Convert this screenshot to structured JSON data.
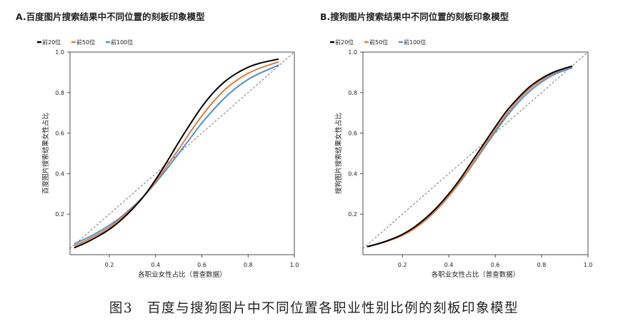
{
  "figure": {
    "caption": "图3　百度与搜狗图片中不同位置各职业性别比例的刻板印象模型"
  },
  "chart_data": [
    {
      "type": "line",
      "title": "A.百度图片搜索结果中不同位置的刻板印象模型",
      "xlabel": "各职业女性占比（普查数据）",
      "ylabel": "百度图片搜索结果女性占比",
      "xlim": [
        0.03,
        1.0
      ],
      "ylim": [
        0.0,
        1.0
      ],
      "xticks": [
        "0.2",
        "0.4",
        "0.6",
        "0.8",
        "1.0"
      ],
      "yticks": [
        "0.2",
        "0.4",
        "0.6",
        "0.8",
        "1.0"
      ],
      "x": [
        0.05,
        0.1,
        0.15,
        0.2,
        0.25,
        0.3,
        0.35,
        0.4,
        0.45,
        0.5,
        0.55,
        0.6,
        0.65,
        0.7,
        0.75,
        0.8,
        0.85,
        0.9,
        0.93
      ],
      "reference_line": {
        "label": "y = x",
        "style": "dashed",
        "from": [
          0.03,
          0.03
        ],
        "to": [
          1.0,
          1.0
        ]
      },
      "legend_position": "top-left",
      "series": [
        {
          "name": "前20位",
          "color": "#000000",
          "values": [
            0.035,
            0.06,
            0.09,
            0.125,
            0.17,
            0.225,
            0.29,
            0.37,
            0.46,
            0.555,
            0.645,
            0.73,
            0.8,
            0.855,
            0.895,
            0.925,
            0.945,
            0.958,
            0.965
          ]
        },
        {
          "name": "前50位",
          "color": "#E07B39",
          "values": [
            0.045,
            0.07,
            0.1,
            0.135,
            0.18,
            0.23,
            0.29,
            0.36,
            0.44,
            0.52,
            0.605,
            0.685,
            0.755,
            0.815,
            0.86,
            0.895,
            0.92,
            0.94,
            0.95
          ]
        },
        {
          "name": "前100位",
          "color": "#4A90D9",
          "values": [
            0.055,
            0.08,
            0.11,
            0.145,
            0.185,
            0.235,
            0.29,
            0.355,
            0.425,
            0.5,
            0.575,
            0.65,
            0.715,
            0.775,
            0.825,
            0.865,
            0.895,
            0.92,
            0.935
          ]
        }
      ]
    },
    {
      "type": "line",
      "title": "B.搜狗图片搜索结果中不同位置的刻板印象模型",
      "xlabel": "各职业女性占比（普查数据）",
      "ylabel": "搜狗图片搜索结果女性占比",
      "xlim": [
        0.03,
        1.0
      ],
      "ylim": [
        0.0,
        1.0
      ],
      "xticks": [
        "0.2",
        "0.4",
        "0.6",
        "0.8",
        "1.0"
      ],
      "yticks": [
        "0.2",
        "0.4",
        "0.6",
        "0.8",
        "1.0"
      ],
      "x": [
        0.05,
        0.1,
        0.15,
        0.2,
        0.25,
        0.3,
        0.35,
        0.4,
        0.45,
        0.5,
        0.55,
        0.6,
        0.65,
        0.7,
        0.75,
        0.8,
        0.85,
        0.9,
        0.93
      ],
      "reference_line": {
        "label": "y = x",
        "style": "dashed",
        "from": [
          0.03,
          0.03
        ],
        "to": [
          1.0,
          1.0
        ]
      },
      "legend_position": "top-left",
      "series": [
        {
          "name": "前20位",
          "color": "#000000",
          "values": [
            0.04,
            0.055,
            0.075,
            0.1,
            0.135,
            0.18,
            0.235,
            0.3,
            0.375,
            0.46,
            0.545,
            0.63,
            0.71,
            0.775,
            0.83,
            0.87,
            0.9,
            0.92,
            0.93
          ]
        },
        {
          "name": "前50位",
          "color": "#E07B39",
          "values": [
            0.04,
            0.055,
            0.072,
            0.095,
            0.127,
            0.17,
            0.224,
            0.288,
            0.362,
            0.444,
            0.53,
            0.615,
            0.695,
            0.765,
            0.82,
            0.862,
            0.895,
            0.917,
            0.928
          ]
        },
        {
          "name": "前100位",
          "color": "#4A90D9",
          "values": [
            0.04,
            0.056,
            0.074,
            0.097,
            0.129,
            0.172,
            0.225,
            0.288,
            0.36,
            0.44,
            0.523,
            0.605,
            0.683,
            0.752,
            0.808,
            0.852,
            0.887,
            0.91,
            0.922
          ]
        }
      ]
    }
  ]
}
